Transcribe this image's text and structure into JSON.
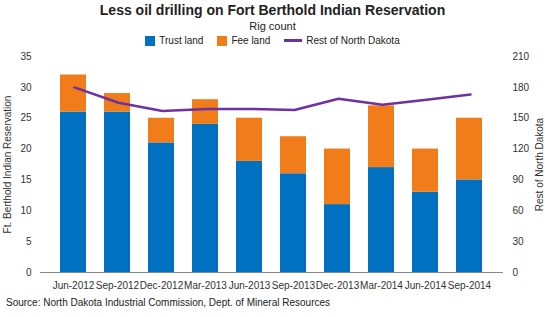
{
  "chart_data": {
    "type": "bar",
    "title": "Less oil drilling on Fort Berthold Indian Reservation",
    "subtitle": "Rig count",
    "source": "Source: North Dakota Industrial Commission, Dept. of Mineral Resources",
    "y_label": "Ft. Berthold Indian Reservation",
    "y2_label": "Rest of North Dakota",
    "categories": [
      "Jun-2012",
      "Sep-2012",
      "Dec-2012",
      "Mar-2013",
      "Jun-2013",
      "Sep-2013",
      "Dec-2013",
      "Mar-2014",
      "Jun-2014",
      "Sep-2014"
    ],
    "series": [
      {
        "name": "Trust land",
        "type": "bar",
        "color": "#0070c0",
        "values": [
          26,
          26,
          21,
          24,
          18,
          16,
          11,
          17,
          13,
          15
        ]
      },
      {
        "name": "Fee land",
        "type": "bar",
        "color": "#f07d1a",
        "values": [
          6,
          3,
          4,
          4,
          7,
          6,
          9,
          10,
          7,
          10
        ]
      },
      {
        "name": "Rest of North Dakota",
        "type": "line",
        "axis": "y2",
        "color": "#7030a0",
        "values": [
          180,
          165,
          157,
          159,
          159,
          158,
          169,
          163,
          168,
          173
        ]
      }
    ],
    "stacked": true,
    "ylim": [
      0,
      35
    ],
    "yticks": [
      0,
      5,
      10,
      15,
      20,
      25,
      30,
      35
    ],
    "y2lim": [
      0,
      210
    ],
    "y2ticks": [
      0,
      30,
      60,
      90,
      120,
      150,
      180,
      210
    ],
    "grid": false,
    "legend": "top"
  }
}
